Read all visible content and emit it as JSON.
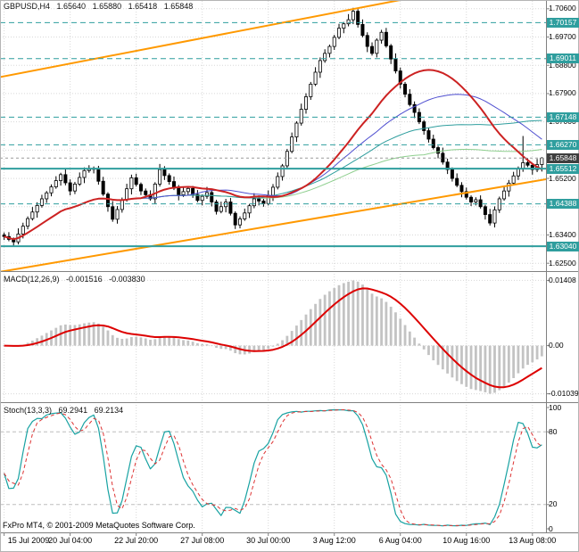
{
  "header": {
    "symbol": "GBPUSD,H4",
    "open": "1.65640",
    "high": "1.65880",
    "low": "1.65418",
    "close": "1.65848"
  },
  "watermark": "FxPro MT4, © 2001-2009 MetaQuotes Software Corp.",
  "colors": {
    "level": "#2f9e9e",
    "level_label_bg": "#2f9e9e",
    "current_label_bg": "#3f3f3f",
    "grid": "#d8d8d8",
    "bull": "#ffffff",
    "bear": "#000000",
    "trendline": "#ff9900",
    "ma_red": "#cc2222",
    "ma_teal": "#2f9e9e",
    "ma_blue": "#4f4fd0",
    "ma_green": "#8fcf8f",
    "macd_histogram": "#c3c3c3",
    "macd_signal": "#dd0000",
    "stoch_k": "#17a2a2",
    "stoch_d": "#dd3333"
  },
  "chart_data": [
    {
      "type": "candlestick",
      "title": "GBPUSD,H4",
      "timeframe": "H4",
      "current_bar": {
        "open": 1.6564,
        "high": 1.6588,
        "low": 1.65418,
        "close": 1.65848
      },
      "ylim": [
        1.6225,
        1.7085
      ],
      "x_axis": {
        "labels": [
          "15 Jul 2009",
          "20 Jul 04:00",
          "22 Jul 20:00",
          "27 Jul 08:00",
          "30 Jul 00:00",
          "3 Aug 12:00",
          "6 Aug 04:00",
          "10 Aug 16:00",
          "13 Aug 08:00"
        ],
        "indices": [
          0,
          14,
          28,
          42,
          56,
          70,
          84,
          98,
          112
        ]
      },
      "y_axis": {
        "grid_labels": [
          {
            "text": "1.70600",
            "value": 1.706
          },
          {
            "text": "1.69700",
            "value": 1.697
          },
          {
            "text": "1.68800",
            "value": 1.688
          },
          {
            "text": "1.67900",
            "value": 1.679
          },
          {
            "text": "1.67000",
            "value": 1.67
          },
          {
            "text": "1.65200",
            "value": 1.652
          },
          {
            "text": "1.64300",
            "value": 1.643
          },
          {
            "text": "1.63400",
            "value": 1.634
          },
          {
            "text": "1.62500",
            "value": 1.625
          }
        ]
      },
      "grid_values": [
        1.706,
        1.697,
        1.688,
        1.679,
        1.67,
        1.661,
        1.652,
        1.643,
        1.634,
        1.625
      ],
      "levels": [
        {
          "text": "1.70157",
          "value": 1.70157,
          "style": "dashed"
        },
        {
          "text": "1.69011",
          "value": 1.69011,
          "style": "dashed"
        },
        {
          "text": "1.67148",
          "value": 1.67148,
          "style": "dashed"
        },
        {
          "text": "1.66270",
          "value": 1.6627,
          "style": "dashed"
        },
        {
          "text": "1.65512",
          "value": 1.65512,
          "style": "solid"
        },
        {
          "text": "1.64388",
          "value": 1.64388,
          "style": "dashed"
        },
        {
          "text": "1.63040",
          "value": 1.6304,
          "style": "solid"
        }
      ],
      "current": {
        "text": "1.65848",
        "value": 1.65848
      },
      "moving_averages": [
        {
          "period": 90,
          "color": "#8fcf8f",
          "width": 1
        },
        {
          "period": 55,
          "color": "#2f9e9e",
          "width": 1
        },
        {
          "period": 40,
          "color": "#4f4fd0",
          "width": 1
        },
        {
          "period": 30,
          "color": "#cc2222",
          "width": 2
        }
      ],
      "trendlines": [
        {
          "from": [
            0,
            1.6845
          ],
          "to": [
            83,
            1.7085
          ],
          "color": "#ff9900"
        },
        {
          "from": [
            4,
            1.6235
          ],
          "to": [
            114,
            1.6515
          ],
          "color": "#ff9900"
        }
      ],
      "candles": [
        [
          1.634,
          1.6348,
          1.6324,
          1.6335
        ],
        [
          1.6335,
          1.6349,
          1.632,
          1.6326
        ],
        [
          1.6326,
          1.6332,
          1.6302,
          1.6318
        ],
        [
          1.6318,
          1.6361,
          1.631,
          1.6343
        ],
        [
          1.6343,
          1.6379,
          1.6329,
          1.6368
        ],
        [
          1.6368,
          1.6399,
          1.6358,
          1.6392
        ],
        [
          1.6392,
          1.6429,
          1.6386,
          1.6413
        ],
        [
          1.6413,
          1.6444,
          1.6395,
          1.6434
        ],
        [
          1.6434,
          1.6468,
          1.6427,
          1.6455
        ],
        [
          1.6455,
          1.648,
          1.6442,
          1.6474
        ],
        [
          1.6474,
          1.6501,
          1.6463,
          1.6493
        ],
        [
          1.6493,
          1.6527,
          1.6487,
          1.6513
        ],
        [
          1.6513,
          1.6538,
          1.6497,
          1.6532
        ],
        [
          1.6532,
          1.655,
          1.6498,
          1.6506
        ],
        [
          1.6506,
          1.6517,
          1.6466,
          1.648
        ],
        [
          1.648,
          1.6509,
          1.647,
          1.6502
        ],
        [
          1.6502,
          1.6539,
          1.6496,
          1.6523
        ],
        [
          1.6523,
          1.6555,
          1.6505,
          1.6545
        ],
        [
          1.6545,
          1.6562,
          1.6538,
          1.6549
        ],
        [
          1.6549,
          1.6558,
          1.6536,
          1.6552
        ],
        [
          1.6552,
          1.656,
          1.65,
          1.6511
        ],
        [
          1.6511,
          1.6525,
          1.6464,
          1.647
        ],
        [
          1.647,
          1.6476,
          1.6414,
          1.643
        ],
        [
          1.643,
          1.6448,
          1.6382,
          1.639
        ],
        [
          1.639,
          1.6432,
          1.6376,
          1.6421
        ],
        [
          1.6421,
          1.6459,
          1.6411,
          1.6452
        ],
        [
          1.6452,
          1.6503,
          1.6446,
          1.6487
        ],
        [
          1.6487,
          1.6532,
          1.6469,
          1.6522
        ],
        [
          1.6522,
          1.6535,
          1.6494,
          1.6501
        ],
        [
          1.6501,
          1.6507,
          1.6467,
          1.648
        ],
        [
          1.648,
          1.6488,
          1.6457,
          1.6468
        ],
        [
          1.6468,
          1.6482,
          1.6449,
          1.6455
        ],
        [
          1.6455,
          1.6508,
          1.6439,
          1.6502
        ],
        [
          1.6502,
          1.6566,
          1.6494,
          1.6548
        ],
        [
          1.6548,
          1.6559,
          1.6515,
          1.6529
        ],
        [
          1.6529,
          1.6536,
          1.65,
          1.651
        ],
        [
          1.651,
          1.6526,
          1.6483,
          1.6489
        ],
        [
          1.6489,
          1.6499,
          1.645,
          1.6468
        ],
        [
          1.6468,
          1.6491,
          1.6461,
          1.6478
        ],
        [
          1.6478,
          1.6494,
          1.6465,
          1.6488
        ],
        [
          1.6488,
          1.6496,
          1.6458,
          1.6469
        ],
        [
          1.6469,
          1.6483,
          1.6444,
          1.645
        ],
        [
          1.645,
          1.6469,
          1.6434,
          1.6463
        ],
        [
          1.6463,
          1.6493,
          1.6455,
          1.6475
        ],
        [
          1.6475,
          1.6486,
          1.6431,
          1.6445
        ],
        [
          1.6445,
          1.6452,
          1.6405,
          1.6415
        ],
        [
          1.6415,
          1.6446,
          1.6409,
          1.643
        ],
        [
          1.643,
          1.6455,
          1.6412,
          1.6445
        ],
        [
          1.6445,
          1.6458,
          1.6402,
          1.6409
        ],
        [
          1.6409,
          1.6415,
          1.6359,
          1.6372
        ],
        [
          1.6372,
          1.6399,
          1.6361,
          1.6391
        ],
        [
          1.6391,
          1.6424,
          1.6385,
          1.641
        ],
        [
          1.641,
          1.6439,
          1.6394,
          1.6433
        ],
        [
          1.6433,
          1.6473,
          1.6425,
          1.6455
        ],
        [
          1.6455,
          1.6466,
          1.6434,
          1.6448
        ],
        [
          1.6448,
          1.6455,
          1.643,
          1.644
        ],
        [
          1.644,
          1.6482,
          1.6434,
          1.6466
        ],
        [
          1.6466,
          1.6502,
          1.6448,
          1.6492
        ],
        [
          1.6492,
          1.6539,
          1.6485,
          1.6526
        ],
        [
          1.6526,
          1.6566,
          1.6513,
          1.656
        ],
        [
          1.656,
          1.6614,
          1.6549,
          1.6606
        ],
        [
          1.6606,
          1.6666,
          1.66,
          1.6652
        ],
        [
          1.6652,
          1.6702,
          1.6636,
          1.6696
        ],
        [
          1.6696,
          1.6758,
          1.6688,
          1.674
        ],
        [
          1.674,
          1.6791,
          1.6726,
          1.678
        ],
        [
          1.678,
          1.6827,
          1.677,
          1.682
        ],
        [
          1.682,
          1.6874,
          1.6814,
          1.6858
        ],
        [
          1.6858,
          1.6905,
          1.684,
          1.6895
        ],
        [
          1.6895,
          1.6931,
          1.6888,
          1.6918
        ],
        [
          1.6918,
          1.6946,
          1.6905,
          1.694
        ],
        [
          1.694,
          1.6977,
          1.6929,
          1.6969
        ],
        [
          1.6969,
          1.7012,
          1.6963,
          1.6998
        ],
        [
          1.6998,
          1.7018,
          1.6982,
          1.7012
        ],
        [
          1.7012,
          1.7043,
          1.7004,
          1.7025
        ],
        [
          1.7025,
          1.7063,
          1.7011,
          1.7052
        ],
        [
          1.7052,
          1.7059,
          1.7,
          1.701
        ],
        [
          1.701,
          1.7026,
          1.6969,
          1.6975
        ],
        [
          1.6975,
          1.6985,
          1.6922,
          1.694
        ],
        [
          1.694,
          1.6953,
          1.6911,
          1.6918
        ],
        [
          1.6918,
          1.6966,
          1.6905,
          1.696
        ],
        [
          1.696,
          1.6993,
          1.6949,
          1.6985
        ],
        [
          1.6985,
          1.6999,
          1.6936,
          1.6942
        ],
        [
          1.6942,
          1.6948,
          1.6884,
          1.69
        ],
        [
          1.69,
          1.6918,
          1.6854,
          1.6862
        ],
        [
          1.6862,
          1.6873,
          1.6806,
          1.682
        ],
        [
          1.682,
          1.6827,
          1.6778,
          1.6788
        ],
        [
          1.6788,
          1.6804,
          1.6749,
          1.6755
        ],
        [
          1.6755,
          1.6765,
          1.6712,
          1.673
        ],
        [
          1.673,
          1.6743,
          1.6693,
          1.67
        ],
        [
          1.67,
          1.6706,
          1.6659,
          1.6672
        ],
        [
          1.6672,
          1.668,
          1.6634,
          1.6645
        ],
        [
          1.6645,
          1.6659,
          1.6612,
          1.6618
        ],
        [
          1.6618,
          1.6624,
          1.6584,
          1.66
        ],
        [
          1.66,
          1.6618,
          1.6564,
          1.6572
        ],
        [
          1.6572,
          1.6583,
          1.6534,
          1.6548
        ],
        [
          1.6548,
          1.6555,
          1.651,
          1.652
        ],
        [
          1.652,
          1.6536,
          1.6492,
          1.6498
        ],
        [
          1.6498,
          1.6508,
          1.646,
          1.6478
        ],
        [
          1.6478,
          1.6491,
          1.6453,
          1.646
        ],
        [
          1.646,
          1.6466,
          1.6432,
          1.6445
        ],
        [
          1.6445,
          1.646,
          1.6434,
          1.6452
        ],
        [
          1.6452,
          1.6466,
          1.6424,
          1.643
        ],
        [
          1.643,
          1.6436,
          1.6389,
          1.6405
        ],
        [
          1.6405,
          1.6423,
          1.637,
          1.6378
        ],
        [
          1.6378,
          1.6431,
          1.6364,
          1.642
        ],
        [
          1.642,
          1.6462,
          1.641,
          1.6455
        ],
        [
          1.6455,
          1.6496,
          1.6449,
          1.648
        ],
        [
          1.648,
          1.6515,
          1.6462,
          1.6505
        ],
        [
          1.6505,
          1.6541,
          1.6498,
          1.6528
        ],
        [
          1.6528,
          1.6558,
          1.6515,
          1.6552
        ],
        [
          1.6552,
          1.6655,
          1.6541,
          1.657
        ],
        [
          1.657,
          1.6584,
          1.6556,
          1.6562
        ],
        [
          1.6562,
          1.6568,
          1.6532,
          1.6548
        ],
        [
          1.6548,
          1.6582,
          1.654,
          1.6564
        ],
        [
          1.6564,
          1.6588,
          1.65418,
          1.65848
        ]
      ]
    },
    {
      "type": "line",
      "indicator": "MACD(12,26,9)",
      "fast": 12,
      "slow": 26,
      "signal": 9,
      "values": [
        "-0.001516",
        "-0.003830"
      ],
      "ylim": [
        -0.0122,
        0.0157
      ],
      "extremes": {
        "max": 0.01408,
        "min": -0.01039
      },
      "axis_labels": [
        {
          "text": "0.01408",
          "value": 0.01408
        },
        {
          "text": "0.00",
          "value": 0
        },
        {
          "text": "-0.01039",
          "value": -0.01039
        }
      ],
      "histogram_color": "#c3c3c3",
      "signal_color": "#dd0000"
    },
    {
      "type": "line",
      "indicator": "Stoch(13,3,3)",
      "k": 13,
      "d": 3,
      "slowing": 3,
      "values": [
        "69.2941",
        "69.2134"
      ],
      "ylim": [
        0,
        100
      ],
      "grid_levels": [
        20,
        80
      ],
      "axis_labels": [
        {
          "text": "100",
          "value": 100
        },
        {
          "text": "80",
          "value": 80
        },
        {
          "text": "20",
          "value": 20
        },
        {
          "text": "0",
          "value": 0
        }
      ],
      "k_color": "#17a2a2",
      "d_color": "#dd3333"
    }
  ]
}
